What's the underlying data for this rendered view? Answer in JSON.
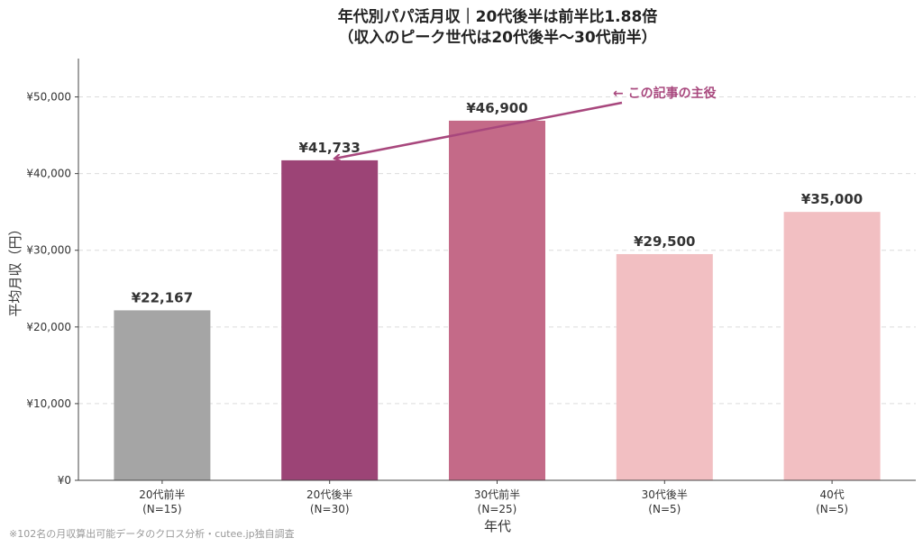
{
  "chart_data": {
    "type": "bar",
    "title_line1": "年代別パパ活月収｜20代後半は前半比1.88倍",
    "title_line2": "（収入のピーク世代は20代後半〜30代前半）",
    "xlabel": "年代",
    "ylabel": "平均月収（円）",
    "ylim": [
      0,
      55000
    ],
    "yticks": [
      0,
      10000,
      20000,
      30000,
      40000,
      50000
    ],
    "ytick_labels": [
      "¥0",
      "¥10,000",
      "¥20,000",
      "¥30,000",
      "¥40,000",
      "¥50,000"
    ],
    "grid": true,
    "categories": [
      {
        "name": "20代前半",
        "n": "(N=15)"
      },
      {
        "name": "20代後半",
        "n": "(N=30)"
      },
      {
        "name": "30代前半",
        "n": "(N=25)"
      },
      {
        "name": "30代後半",
        "n": "(N=5)"
      },
      {
        "name": "40代",
        "n": "(N=5)"
      }
    ],
    "values": [
      22167,
      41733,
      46900,
      29500,
      35000
    ],
    "value_labels": [
      "¥22,167",
      "¥41,733",
      "¥46,900",
      "¥29,500",
      "¥35,000"
    ],
    "colors": [
      "#a5a5a5",
      "#9c4476",
      "#c46a88",
      "#f2bfc2",
      "#f2bfc2"
    ],
    "annotation": {
      "text": "← この記事の主役",
      "target_index": 1,
      "color": "#a8477d"
    },
    "footnote": "※102名の月収算出可能データのクロス分析・cutee.jp独自調査"
  }
}
